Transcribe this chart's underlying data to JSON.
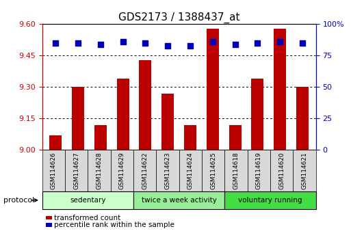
{
  "title": "GDS2173 / 1388437_at",
  "samples": [
    "GSM114626",
    "GSM114627",
    "GSM114628",
    "GSM114629",
    "GSM114622",
    "GSM114623",
    "GSM114624",
    "GSM114625",
    "GSM114618",
    "GSM114619",
    "GSM114620",
    "GSM114621"
  ],
  "transformed_count": [
    9.07,
    9.3,
    9.12,
    9.34,
    9.43,
    9.27,
    9.12,
    9.58,
    9.12,
    9.34,
    9.58,
    9.3
  ],
  "percentile_rank": [
    85,
    85,
    84,
    86,
    85,
    83,
    83,
    86,
    84,
    85,
    86,
    85
  ],
  "ylim_left": [
    9.0,
    9.6
  ],
  "ylim_right": [
    0,
    100
  ],
  "yticks_left": [
    9.0,
    9.15,
    9.3,
    9.45,
    9.6
  ],
  "yticks_right": [
    0,
    25,
    50,
    75,
    100
  ],
  "groups": [
    {
      "label": "sedentary",
      "indices": [
        0,
        1,
        2,
        3
      ],
      "color": "#ccffcc"
    },
    {
      "label": "twice a week activity",
      "indices": [
        4,
        5,
        6,
        7
      ],
      "color": "#99ee99"
    },
    {
      "label": "voluntary running",
      "indices": [
        8,
        9,
        10,
        11
      ],
      "color": "#44dd44"
    }
  ],
  "bar_color": "#bb0000",
  "dot_color": "#0000bb",
  "bar_width": 0.55,
  "dot_size": 30,
  "protocol_label": "protocol",
  "legend_bar_label": "transformed count",
  "legend_dot_label": "percentile rank within the sample",
  "axis_color_left": "#cc0000",
  "axis_color_right": "#0000cc",
  "title_fontsize": 11,
  "tick_fontsize": 8,
  "sample_fontsize": 6.5
}
